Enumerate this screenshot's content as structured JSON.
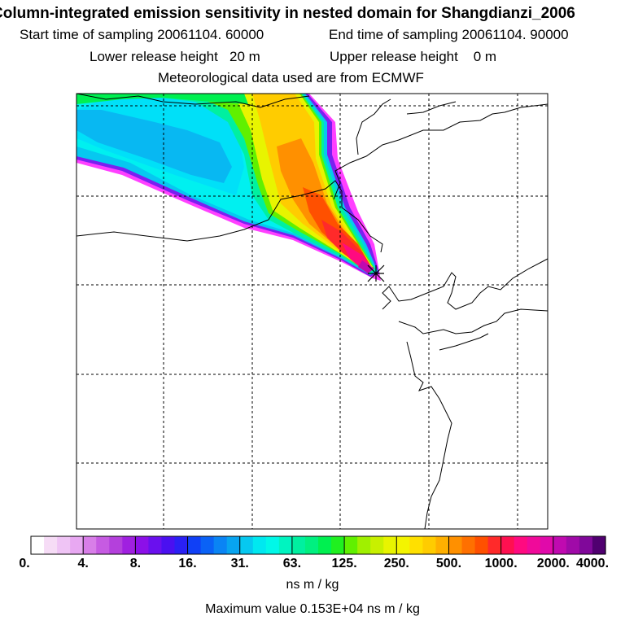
{
  "header": {
    "title": "Column-integrated emission sensitivity in nested domain for Shangdianzi_2006",
    "start_label": "Start time of sampling",
    "start_value": "20061104. 60000",
    "end_label": "End time of sampling",
    "end_value": "20061104. 90000",
    "lower_label": "Lower release height",
    "lower_value": "20 m",
    "upper_label": "Upper release height",
    "upper_value": "0 m",
    "met_text": "Meteorological data used are from ECMWF"
  },
  "colorbar": {
    "labels": [
      "0.",
      "4.",
      "8.",
      "16.",
      "31.",
      "63.",
      "125.",
      "250.",
      "500.",
      "1000.",
      "2000.",
      "4000."
    ],
    "colors": [
      "#ffffff",
      "#f6dcf6",
      "#efc4f5",
      "#e8a8f2",
      "#d87ee8",
      "#c65be2",
      "#b440dc",
      "#a020e0",
      "#8c10e8",
      "#6a10ee",
      "#4a10f0",
      "#2a20f4",
      "#1040f6",
      "#0a62f6",
      "#0a84f4",
      "#08a4f0",
      "#06c8f0",
      "#00e8f0",
      "#00f8e8",
      "#00f4c0",
      "#00f0a0",
      "#00f080",
      "#00f050",
      "#20f020",
      "#60f000",
      "#a0f000",
      "#c8f000",
      "#e8f400",
      "#f4f400",
      "#ffe000",
      "#ffcc00",
      "#ffb000",
      "#ff9000",
      "#ff7000",
      "#ff5000",
      "#ff2a2a",
      "#ff1050",
      "#ff0a80",
      "#f00a9a",
      "#e00aaa",
      "#c00ab0",
      "#a00aa8",
      "#80089a",
      "#500070"
    ],
    "units": "ns m / kg",
    "max_text": "Maximum value  0.153E+04 ns m / kg"
  },
  "map": {
    "receptor_marker": "receptor-cross",
    "grid_style": "dashed"
  }
}
